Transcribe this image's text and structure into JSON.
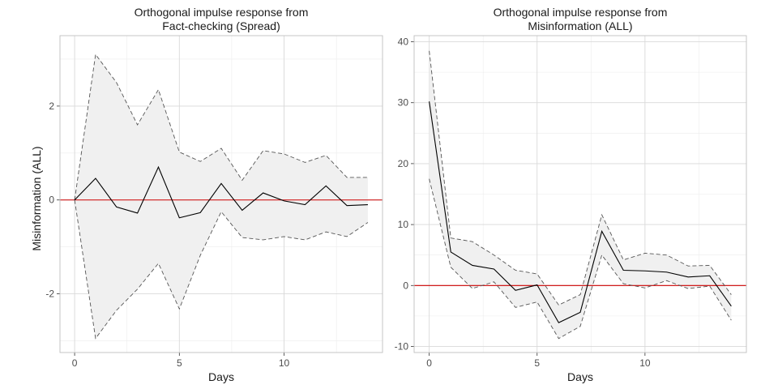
{
  "chart_data": [
    {
      "type": "line",
      "title_line1": "Orthogonal impulse response from",
      "title_line2": "Fact-checking  (Spread)",
      "xlabel": "Days",
      "ylabel": "Misinformation (ALL)",
      "xlim": [
        -0.7,
        14.7
      ],
      "ylim": [
        -3.25,
        3.5
      ],
      "xticks": [
        0,
        5,
        10
      ],
      "yticks": [
        -2,
        0,
        2
      ],
      "reference_line": {
        "y": 0,
        "color": "#cc0000"
      },
      "x": [
        0,
        1,
        2,
        3,
        4,
        5,
        6,
        7,
        8,
        9,
        10,
        11,
        12,
        13,
        14
      ],
      "series": [
        {
          "role": "response",
          "values": [
            0,
            0.46,
            -0.15,
            -0.28,
            0.7,
            -0.38,
            -0.27,
            0.35,
            -0.22,
            0.15,
            -0.02,
            -0.1,
            0.3,
            -0.12,
            -0.1
          ]
        },
        {
          "role": "upper",
          "values": [
            0,
            3.1,
            2.5,
            1.6,
            2.35,
            1.02,
            0.82,
            1.1,
            0.42,
            1.05,
            0.98,
            0.8,
            0.95,
            0.48,
            0.48
          ]
        },
        {
          "role": "lower",
          "values": [
            0,
            -2.95,
            -2.35,
            -1.9,
            -1.35,
            -2.32,
            -1.18,
            -0.25,
            -0.8,
            -0.85,
            -0.78,
            -0.85,
            -0.68,
            -0.78,
            -0.48
          ]
        }
      ]
    },
    {
      "type": "line",
      "title_line1": "Orthogonal impulse response from",
      "title_line2": "Misinformation (ALL)",
      "xlabel": "Days",
      "ylabel": "",
      "xlim": [
        -0.7,
        14.7
      ],
      "ylim": [
        -11,
        41
      ],
      "xticks": [
        0,
        5,
        10
      ],
      "yticks": [
        -10,
        0,
        10,
        20,
        30,
        40
      ],
      "reference_line": {
        "y": 0,
        "color": "#cc0000"
      },
      "x": [
        0,
        1,
        2,
        3,
        4,
        5,
        6,
        7,
        8,
        9,
        10,
        11,
        12,
        13,
        14
      ],
      "series": [
        {
          "role": "response",
          "values": [
            30.2,
            5.5,
            3.3,
            2.7,
            -0.8,
            0.1,
            -6.1,
            -4.4,
            8.9,
            2.5,
            2.4,
            2.2,
            1.4,
            1.6,
            -3.4
          ]
        },
        {
          "role": "upper",
          "values": [
            38.5,
            7.8,
            7.2,
            5.0,
            2.5,
            1.9,
            -3.2,
            -1.5,
            11.6,
            4.2,
            5.3,
            5.0,
            3.2,
            3.3,
            -1.5
          ]
        },
        {
          "role": "lower",
          "values": [
            17.5,
            3.0,
            -0.5,
            0.6,
            -3.6,
            -2.7,
            -8.7,
            -6.7,
            5.0,
            0.3,
            -0.4,
            0.8,
            -0.5,
            -0.1,
            -5.7
          ]
        }
      ]
    }
  ]
}
